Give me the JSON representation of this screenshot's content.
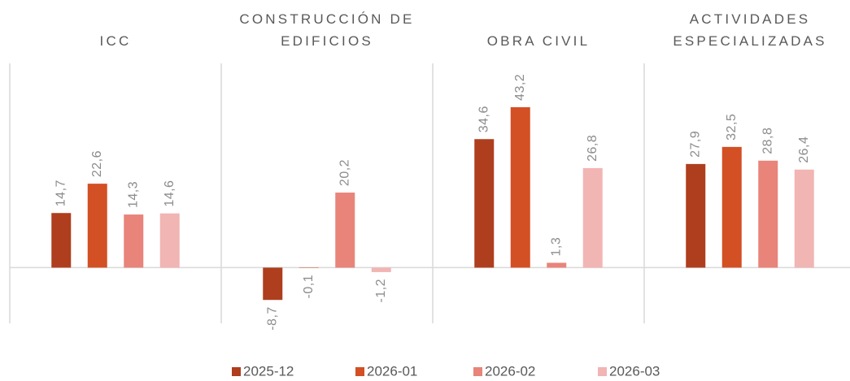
{
  "chart_data": {
    "type": "bar",
    "categories": [
      "ICC",
      "CONSTRUCCIÓN DE EDIFICIOS",
      "OBRA CIVIL",
      "ACTIVIDADES ESPECIALIZADAS"
    ],
    "series": [
      {
        "name": "2025-12",
        "color": "#ae3e1d",
        "values": [
          14.7,
          -8.7,
          34.6,
          27.9
        ],
        "value_labels": [
          "14,7",
          "-8,7",
          "34,6",
          "27,9"
        ]
      },
      {
        "name": "2026-01",
        "color": "#d34f24",
        "values": [
          22.6,
          -0.1,
          43.2,
          32.5
        ],
        "value_labels": [
          "22,6",
          "-0,1",
          "43,2",
          "32,5"
        ]
      },
      {
        "name": "2026-02",
        "color": "#e8847a",
        "values": [
          14.3,
          20.2,
          1.3,
          28.8
        ],
        "value_labels": [
          "14,3",
          "20,2",
          "1,3",
          "28,8"
        ]
      },
      {
        "name": "2026-03",
        "color": "#f1b5b3",
        "values": [
          14.6,
          -1.2,
          26.8,
          26.4
        ],
        "value_labels": [
          "14,6",
          "-1,2",
          "26,8",
          "26,4"
        ]
      }
    ],
    "ylim": [
      -15,
      55
    ],
    "legend": "bottom"
  }
}
